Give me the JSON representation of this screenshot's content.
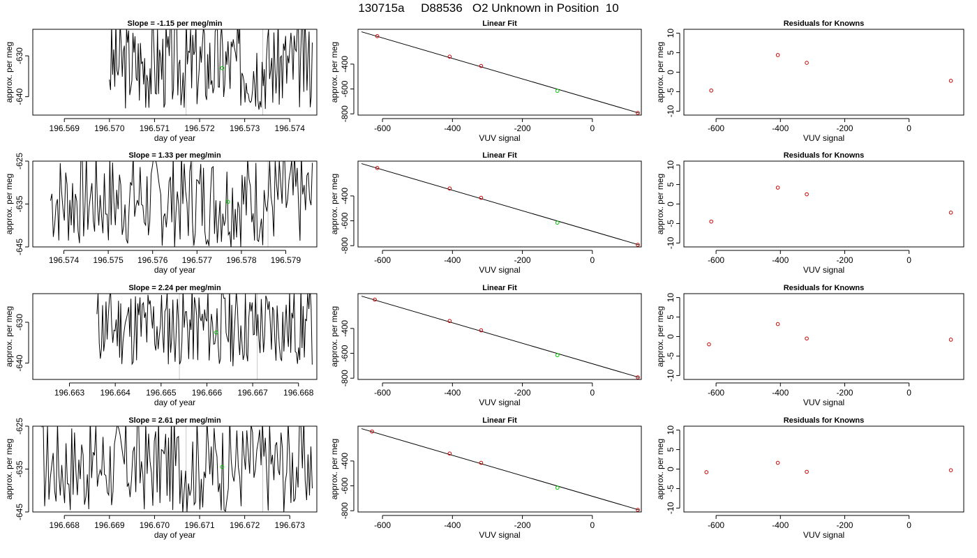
{
  "figure": {
    "title": "130715a     D88536   O2 Unknown in Position  10"
  },
  "colors": {
    "line": "#000000",
    "marker_red": "#cc0000",
    "marker_green": "#00cc00",
    "vline": "#c8c8c8",
    "frame": "#000000"
  },
  "chart_data": [
    {
      "type": "line",
      "title": "Slope =  -1.15  per meg/min",
      "xlabel": "day of year",
      "ylabel": "approx. per meg",
      "xlim": [
        196.5683,
        196.5746
      ],
      "ylim": [
        -644.5,
        -623.5
      ],
      "xticks": [
        "196.569",
        "196.570",
        "196.571",
        "196.572",
        "196.573",
        "196.574"
      ],
      "xtick_values": [
        196.569,
        196.57,
        196.571,
        196.572,
        196.573,
        196.574
      ],
      "yticks": [
        "-640",
        "-630"
      ],
      "ytick_values": [
        -640,
        -630
      ],
      "vlines": [
        196.5717,
        196.5734
      ],
      "marker": {
        "x": 196.5725,
        "y": -633
      },
      "x_start": 196.57,
      "x_end": 196.5745,
      "center": -632,
      "amplitude": 9,
      "seed": 3
    },
    {
      "type": "scatter",
      "title": "Linear Fit",
      "xlabel": "VUV signal",
      "ylabel": "approx. per meg",
      "xlim": [
        -670,
        140
      ],
      "ylim": [
        -810,
        -120
      ],
      "xticks": [
        "-600",
        "-400",
        "-200",
        "0"
      ],
      "xtick_values": [
        -600,
        -400,
        -200,
        0
      ],
      "yticks": [
        "-800",
        "-600",
        "-400"
      ],
      "ytick_values": [
        -800,
        -600,
        -400
      ],
      "fit_line": [
        [
          -660,
          -140
        ],
        [
          135,
          -795
        ]
      ],
      "points_red": [
        [
          -615,
          -175
        ],
        [
          -408,
          -340
        ],
        [
          -318,
          -415
        ],
        [
          130,
          -793
        ]
      ],
      "points_green": [
        [
          -100,
          -615
        ]
      ]
    },
    {
      "type": "scatter",
      "title": "Residuals for Knowns",
      "xlabel": "VUV signal",
      "ylabel": "approx. per meg",
      "xlim": [
        -700,
        170
      ],
      "ylim": [
        -11,
        11
      ],
      "xticks": [
        "-600",
        "-400",
        "-200",
        "0"
      ],
      "xtick_values": [
        -600,
        -400,
        -200,
        0
      ],
      "yticks": [
        "-10",
        "-5",
        "0",
        "5",
        "10"
      ],
      "ytick_values": [
        -10,
        -5,
        0,
        5,
        10
      ],
      "points_red": [
        [
          -615,
          -4.7
        ],
        [
          -408,
          4.4
        ],
        [
          -318,
          2.4
        ],
        [
          130,
          -2.2
        ]
      ]
    },
    {
      "type": "line",
      "title": "Slope =  1.33  per meg/min",
      "xlabel": "day of year",
      "ylabel": "approx. per meg",
      "xlim": [
        196.5733,
        196.5797
      ],
      "ylim": [
        -645,
        -625
      ],
      "xticks": [
        "196.574",
        "196.575",
        "196.576",
        "196.577",
        "196.578",
        "196.579"
      ],
      "xtick_values": [
        196.574,
        196.575,
        196.576,
        196.577,
        196.578,
        196.579
      ],
      "yticks": [
        "-645",
        "-635",
        "-625"
      ],
      "ytick_values": [
        -645,
        -635,
        -625
      ],
      "vlines": [
        196.5769,
        196.5786
      ],
      "marker": {
        "x": 196.5777,
        "y": -634.5
      },
      "x_start": 196.5737,
      "x_end": 196.5796,
      "center": -634,
      "amplitude": 9,
      "seed": 7
    },
    {
      "type": "scatter",
      "title": "Linear Fit",
      "xlabel": "VUV signal",
      "ylabel": "approx. per meg",
      "xlim": [
        -670,
        140
      ],
      "ylim": [
        -810,
        -120
      ],
      "xticks": [
        "-600",
        "-400",
        "-200",
        "0"
      ],
      "xtick_values": [
        -600,
        -400,
        -200,
        0
      ],
      "yticks": [
        "-800",
        "-600",
        "-400"
      ],
      "ytick_values": [
        -800,
        -600,
        -400
      ],
      "fit_line": [
        [
          -660,
          -140
        ],
        [
          135,
          -795
        ]
      ],
      "points_red": [
        [
          -615,
          -175
        ],
        [
          -408,
          -340
        ],
        [
          -318,
          -415
        ],
        [
          130,
          -793
        ]
      ],
      "points_green": [
        [
          -100,
          -615
        ]
      ]
    },
    {
      "type": "scatter",
      "title": "Residuals for Knowns",
      "xlabel": "VUV signal",
      "ylabel": "approx. per meg",
      "xlim": [
        -700,
        170
      ],
      "ylim": [
        -11,
        11
      ],
      "xticks": [
        "-600",
        "-400",
        "-200",
        "0"
      ],
      "xtick_values": [
        -600,
        -400,
        -200,
        0
      ],
      "yticks": [
        "-10",
        "-5",
        "0",
        "5",
        "10"
      ],
      "ytick_values": [
        -10,
        -5,
        0,
        5,
        10
      ],
      "points_red": [
        [
          -615,
          -4.5
        ],
        [
          -408,
          4.2
        ],
        [
          -318,
          2.5
        ],
        [
          130,
          -2.2
        ]
      ]
    },
    {
      "type": "line",
      "title": "Slope =  2.24  per meg/min",
      "xlabel": "day of year",
      "ylabel": "approx. per meg",
      "xlim": [
        196.6622,
        196.6684
      ],
      "ylim": [
        -644,
        -623
      ],
      "xticks": [
        "196.663",
        "196.664",
        "196.665",
        "196.666",
        "196.667",
        "196.668"
      ],
      "xtick_values": [
        196.663,
        196.664,
        196.665,
        196.666,
        196.667,
        196.668
      ],
      "yticks": [
        "-640",
        "-630"
      ],
      "ytick_values": [
        -640,
        -630
      ],
      "vlines": [
        196.6654,
        196.6671
      ],
      "marker": {
        "x": 196.6662,
        "y": -632.5
      },
      "x_start": 196.6636,
      "x_end": 196.6683,
      "center": -631,
      "amplitude": 8,
      "seed": 11
    },
    {
      "type": "scatter",
      "title": "Linear Fit",
      "xlabel": "VUV signal",
      "ylabel": "approx. per meg",
      "xlim": [
        -670,
        140
      ],
      "ylim": [
        -810,
        -120
      ],
      "xticks": [
        "-600",
        "-400",
        "-200",
        "0"
      ],
      "xtick_values": [
        -600,
        -400,
        -200,
        0
      ],
      "yticks": [
        "-800",
        "-600",
        "-400"
      ],
      "ytick_values": [
        -800,
        -600,
        -400
      ],
      "fit_line": [
        [
          -660,
          -140
        ],
        [
          135,
          -795
        ]
      ],
      "points_red": [
        [
          -622,
          -168
        ],
        [
          -408,
          -340
        ],
        [
          -318,
          -415
        ],
        [
          130,
          -793
        ]
      ],
      "points_green": [
        [
          -100,
          -615
        ]
      ]
    },
    {
      "type": "scatter",
      "title": "Residuals for Knowns",
      "xlabel": "VUV signal",
      "ylabel": "approx. per meg",
      "xlim": [
        -700,
        170
      ],
      "ylim": [
        -11,
        11
      ],
      "xticks": [
        "-600",
        "-400",
        "-200",
        "0"
      ],
      "xtick_values": [
        -600,
        -400,
        -200,
        0
      ],
      "yticks": [
        "-10",
        "-5",
        "0",
        "5",
        "10"
      ],
      "ytick_values": [
        -10,
        -5,
        0,
        5,
        10
      ],
      "points_red": [
        [
          -622,
          -2.0
        ],
        [
          -408,
          3.2
        ],
        [
          -318,
          -0.5
        ],
        [
          130,
          -0.8
        ]
      ]
    },
    {
      "type": "line",
      "title": "Slope =  2.61  per meg/min",
      "xlabel": "day of year",
      "ylabel": "approx. per meg",
      "xlim": [
        196.6673,
        196.6736
      ],
      "ylim": [
        -645,
        -625
      ],
      "xticks": [
        "196.668",
        "196.669",
        "196.670",
        "196.671",
        "196.672",
        "196.673"
      ],
      "xtick_values": [
        196.668,
        196.669,
        196.67,
        196.671,
        196.672,
        196.673
      ],
      "yticks": [
        "-645",
        "-635",
        "-625"
      ],
      "ytick_values": [
        -645,
        -635,
        -625
      ],
      "vlines": [
        196.6707,
        196.6724
      ],
      "marker": {
        "x": 196.6715,
        "y": -634.5
      },
      "x_start": 196.6675,
      "x_end": 196.6735,
      "center": -634,
      "amplitude": 9,
      "seed": 17
    },
    {
      "type": "scatter",
      "title": "Linear Fit",
      "xlabel": "VUV signal",
      "ylabel": "approx. per meg",
      "xlim": [
        -670,
        140
      ],
      "ylim": [
        -810,
        -120
      ],
      "xticks": [
        "-600",
        "-400",
        "-200",
        "0"
      ],
      "xtick_values": [
        -600,
        -400,
        -200,
        0
      ],
      "yticks": [
        "-800",
        "-600",
        "-400"
      ],
      "ytick_values": [
        -800,
        -600,
        -400
      ],
      "fit_line": [
        [
          -660,
          -140
        ],
        [
          135,
          -795
        ]
      ],
      "points_red": [
        [
          -630,
          -163
        ],
        [
          -408,
          -340
        ],
        [
          -318,
          -415
        ],
        [
          130,
          -793
        ]
      ],
      "points_green": [
        [
          -100,
          -615
        ]
      ]
    },
    {
      "type": "scatter",
      "title": "Residuals for Knowns",
      "xlabel": "VUV signal",
      "ylabel": "approx. per meg",
      "xlim": [
        -700,
        170
      ],
      "ylim": [
        -11,
        11
      ],
      "xticks": [
        "-600",
        "-400",
        "-200",
        "0"
      ],
      "xtick_values": [
        -600,
        -400,
        -200,
        0
      ],
      "yticks": [
        "-10",
        "-5",
        "0",
        "5",
        "10"
      ],
      "ytick_values": [
        -10,
        -5,
        0,
        5,
        10
      ],
      "points_red": [
        [
          -630,
          -0.8
        ],
        [
          -408,
          1.6
        ],
        [
          -318,
          -0.7
        ],
        [
          130,
          -0.3
        ]
      ]
    }
  ]
}
